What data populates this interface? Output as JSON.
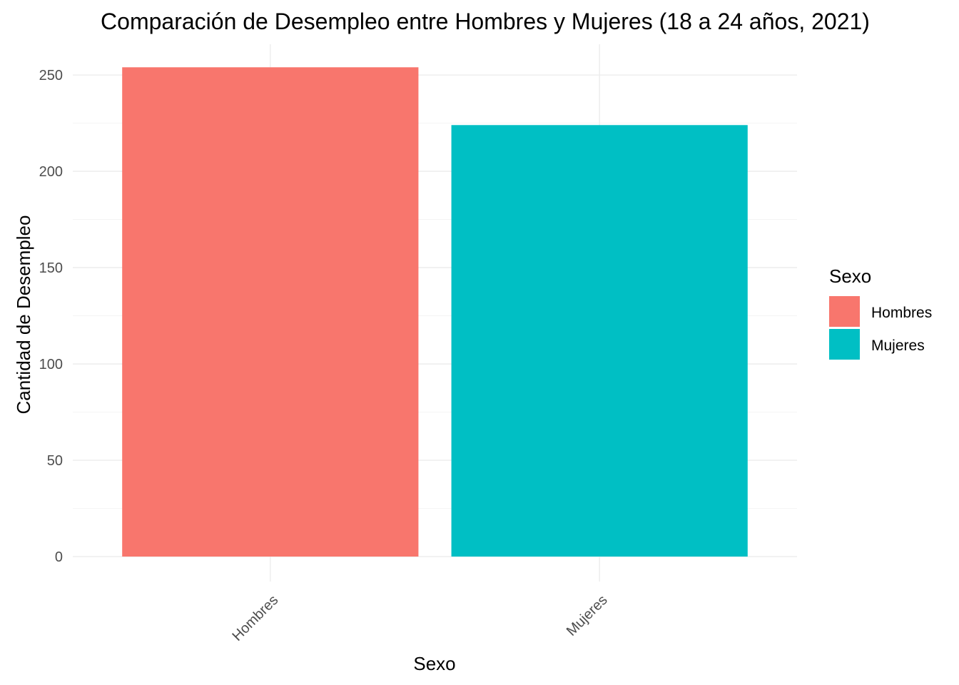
{
  "chart_data": {
    "type": "bar",
    "title": "Comparación de Desempleo entre Hombres y Mujeres (18 a 24 años, 2021)",
    "xlabel": "Sexo",
    "ylabel": "Cantidad de Desempleo",
    "categories": [
      "Hombres",
      "Mujeres"
    ],
    "values": [
      254,
      224
    ],
    "colors": [
      "#F8766D",
      "#00BFC4"
    ],
    "ylim": [
      0,
      263
    ],
    "yticks": [
      0,
      50,
      100,
      150,
      200,
      250
    ],
    "grid": true,
    "legend": {
      "title": "Sexo",
      "placement": "right",
      "entries": [
        "Hombres",
        "Mujeres"
      ]
    }
  }
}
